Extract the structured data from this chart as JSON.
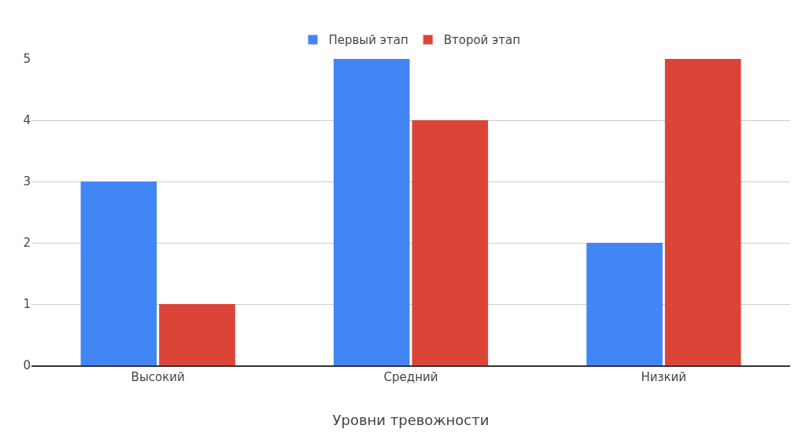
{
  "chart_data": {
    "type": "bar",
    "xlabel": "Уровни тревожности",
    "categories": [
      "Высокий",
      "Средний",
      "Низкий"
    ],
    "series": [
      {
        "name": "Первый этап",
        "color": "#4285f4",
        "values": [
          3,
          5,
          2
        ]
      },
      {
        "name": "Второй этап",
        "color": "#db4437",
        "values": [
          1,
          4,
          5
        ]
      }
    ],
    "ylim": [
      0,
      5
    ],
    "yticks": [
      0,
      1,
      2,
      3,
      4,
      5
    ],
    "grid": "y",
    "legend": "top"
  }
}
